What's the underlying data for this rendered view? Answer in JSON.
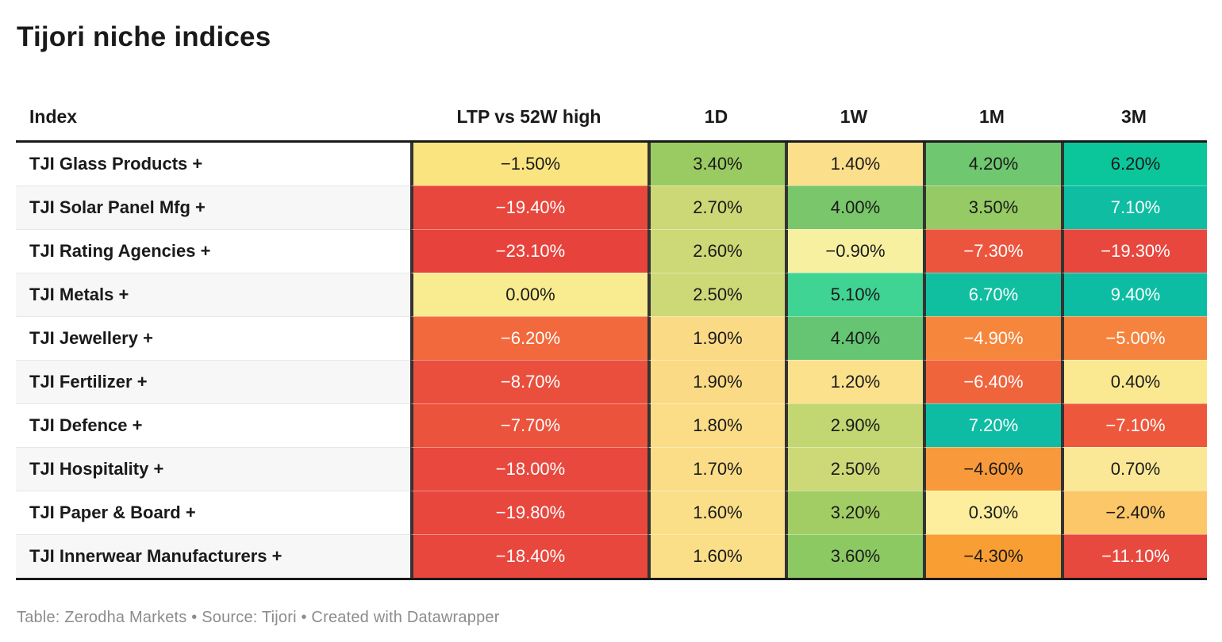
{
  "title": "Tijori niche indices",
  "footer": "Table: Zerodha Markets • Source: Tijori • Created with Datawrapper",
  "columns": [
    {
      "label": "Index"
    },
    {
      "label": "LTP vs 52W high"
    },
    {
      "label": "1D"
    },
    {
      "label": "1W"
    },
    {
      "label": "1M"
    },
    {
      "label": "3M"
    }
  ],
  "colors": {
    "header_rule": "#1a1a1a",
    "column_divider": "#333333",
    "zebra_row": "#f7f7f7",
    "row_divider": "#e8e8e8",
    "footer_text": "#8c8c8c",
    "dark_text": "#1a1a1a",
    "light_text": "#ffffff"
  },
  "rows": [
    {
      "name": "TJI Glass Products +",
      "cells": [
        {
          "v": "−1.50%",
          "bg": "#f9e47f",
          "fg": "#1a1a1a"
        },
        {
          "v": "3.40%",
          "bg": "#9acb62",
          "fg": "#1a1a1a"
        },
        {
          "v": "1.40%",
          "bg": "#fcdf8a",
          "fg": "#1a1a1a"
        },
        {
          "v": "4.20%",
          "bg": "#6fc76f",
          "fg": "#1a1a1a"
        },
        {
          "v": "6.20%",
          "bg": "#0cc69b",
          "fg": "#1a1a1a"
        }
      ]
    },
    {
      "name": "TJI Solar Panel Mfg +",
      "cells": [
        {
          "v": "−19.40%",
          "bg": "#e8473e",
          "fg": "#ffffff"
        },
        {
          "v": "2.70%",
          "bg": "#cbd875",
          "fg": "#1a1a1a"
        },
        {
          "v": "4.00%",
          "bg": "#79c66b",
          "fg": "#1a1a1a"
        },
        {
          "v": "3.50%",
          "bg": "#95ca64",
          "fg": "#1a1a1a"
        },
        {
          "v": "7.10%",
          "bg": "#0ebda2",
          "fg": "#ffffff"
        }
      ]
    },
    {
      "name": "TJI Rating Agencies +",
      "cells": [
        {
          "v": "−23.10%",
          "bg": "#e7433c",
          "fg": "#ffffff"
        },
        {
          "v": "2.60%",
          "bg": "#ccd976",
          "fg": "#1a1a1a"
        },
        {
          "v": "−0.90%",
          "bg": "#f7f0a0",
          "fg": "#1a1a1a"
        },
        {
          "v": "−7.30%",
          "bg": "#ec553d",
          "fg": "#ffffff"
        },
        {
          "v": "−19.30%",
          "bg": "#e8473e",
          "fg": "#ffffff"
        }
      ]
    },
    {
      "name": "TJI Metals +",
      "cells": [
        {
          "v": "0.00%",
          "bg": "#f9ec90",
          "fg": "#1a1a1a"
        },
        {
          "v": "2.50%",
          "bg": "#cdd977",
          "fg": "#1a1a1a"
        },
        {
          "v": "5.10%",
          "bg": "#3fd494",
          "fg": "#1a1a1a"
        },
        {
          "v": "6.70%",
          "bg": "#0fbfa0",
          "fg": "#ffffff"
        },
        {
          "v": "9.40%",
          "bg": "#0cbda4",
          "fg": "#ffffff"
        }
      ]
    },
    {
      "name": "TJI Jewellery +",
      "cells": [
        {
          "v": "−6.20%",
          "bg": "#f1693c",
          "fg": "#ffffff"
        },
        {
          "v": "1.90%",
          "bg": "#fbda86",
          "fg": "#1a1a1a"
        },
        {
          "v": "4.40%",
          "bg": "#65c573",
          "fg": "#1a1a1a"
        },
        {
          "v": "−4.90%",
          "bg": "#f6863c",
          "fg": "#ffffff"
        },
        {
          "v": "−5.00%",
          "bg": "#f5833d",
          "fg": "#ffffff"
        }
      ]
    },
    {
      "name": "TJI Fertilizer +",
      "cells": [
        {
          "v": "−8.70%",
          "bg": "#ea4f3d",
          "fg": "#ffffff"
        },
        {
          "v": "1.90%",
          "bg": "#fbda86",
          "fg": "#1a1a1a"
        },
        {
          "v": "1.20%",
          "bg": "#fbe18b",
          "fg": "#1a1a1a"
        },
        {
          "v": "−6.40%",
          "bg": "#f0643c",
          "fg": "#ffffff"
        },
        {
          "v": "0.40%",
          "bg": "#fbe992",
          "fg": "#1a1a1a"
        }
      ]
    },
    {
      "name": "TJI Defence +",
      "cells": [
        {
          "v": "−7.70%",
          "bg": "#eb533d",
          "fg": "#ffffff"
        },
        {
          "v": "1.80%",
          "bg": "#fbdc87",
          "fg": "#1a1a1a"
        },
        {
          "v": "2.90%",
          "bg": "#c2d671",
          "fg": "#1a1a1a"
        },
        {
          "v": "7.20%",
          "bg": "#0dbca3",
          "fg": "#ffffff"
        },
        {
          "v": "−7.10%",
          "bg": "#ed583c",
          "fg": "#ffffff"
        }
      ]
    },
    {
      "name": "TJI Hospitality +",
      "cells": [
        {
          "v": "−18.00%",
          "bg": "#e8483e",
          "fg": "#ffffff"
        },
        {
          "v": "1.70%",
          "bg": "#fbdd88",
          "fg": "#1a1a1a"
        },
        {
          "v": "2.50%",
          "bg": "#cdd977",
          "fg": "#1a1a1a"
        },
        {
          "v": "−4.60%",
          "bg": "#f89a3b",
          "fg": "#1a1a1a"
        },
        {
          "v": "0.70%",
          "bg": "#fbe896",
          "fg": "#1a1a1a"
        }
      ]
    },
    {
      "name": "TJI Paper & Board +",
      "cells": [
        {
          "v": "−19.80%",
          "bg": "#e8473e",
          "fg": "#ffffff"
        },
        {
          "v": "1.60%",
          "bg": "#fbde88",
          "fg": "#1a1a1a"
        },
        {
          "v": "3.20%",
          "bg": "#a2cd65",
          "fg": "#1a1a1a"
        },
        {
          "v": "0.30%",
          "bg": "#fcee9d",
          "fg": "#1a1a1a"
        },
        {
          "v": "−2.40%",
          "bg": "#fbc769",
          "fg": "#1a1a1a"
        }
      ]
    },
    {
      "name": "TJI Innerwear Manufacturers +",
      "cells": [
        {
          "v": "−18.40%",
          "bg": "#e8473e",
          "fg": "#ffffff"
        },
        {
          "v": "1.60%",
          "bg": "#fbde88",
          "fg": "#1a1a1a"
        },
        {
          "v": "3.60%",
          "bg": "#8cc963",
          "fg": "#1a1a1a"
        },
        {
          "v": "−4.30%",
          "bg": "#f99e33",
          "fg": "#1a1a1a"
        },
        {
          "v": "−11.10%",
          "bg": "#e8493e",
          "fg": "#ffffff"
        }
      ]
    }
  ],
  "chart_data": {
    "type": "heatmap",
    "title": "Tijori niche indices",
    "columns": [
      "LTP vs 52W high",
      "1D",
      "1W",
      "1M",
      "3M"
    ],
    "rows": [
      "TJI Glass Products",
      "TJI Solar Panel Mfg",
      "TJI Rating Agencies",
      "TJI Metals",
      "TJI Jewellery",
      "TJI Fertilizer",
      "TJI Defence",
      "TJI Hospitality",
      "TJI Paper & Board",
      "TJI Innerwear Manufacturers"
    ],
    "values_percent": [
      [
        -1.5,
        3.4,
        1.4,
        4.2,
        6.2
      ],
      [
        -19.4,
        2.7,
        4.0,
        3.5,
        7.1
      ],
      [
        -23.1,
        2.6,
        -0.9,
        -7.3,
        -19.3
      ],
      [
        0.0,
        2.5,
        5.1,
        6.7,
        9.4
      ],
      [
        -6.2,
        1.9,
        4.4,
        -4.9,
        -5.0
      ],
      [
        -8.7,
        1.9,
        1.2,
        -6.4,
        0.4
      ],
      [
        -7.7,
        1.8,
        2.9,
        7.2,
        -7.1
      ],
      [
        -18.0,
        1.7,
        2.5,
        -4.6,
        0.7
      ],
      [
        -19.8,
        1.6,
        3.2,
        0.3,
        -2.4
      ],
      [
        -18.4,
        1.6,
        3.6,
        -4.3,
        -11.1
      ]
    ],
    "legend_position": "none",
    "color_scale": "diverging red → orange → yellow → green → teal, centered near 0"
  }
}
